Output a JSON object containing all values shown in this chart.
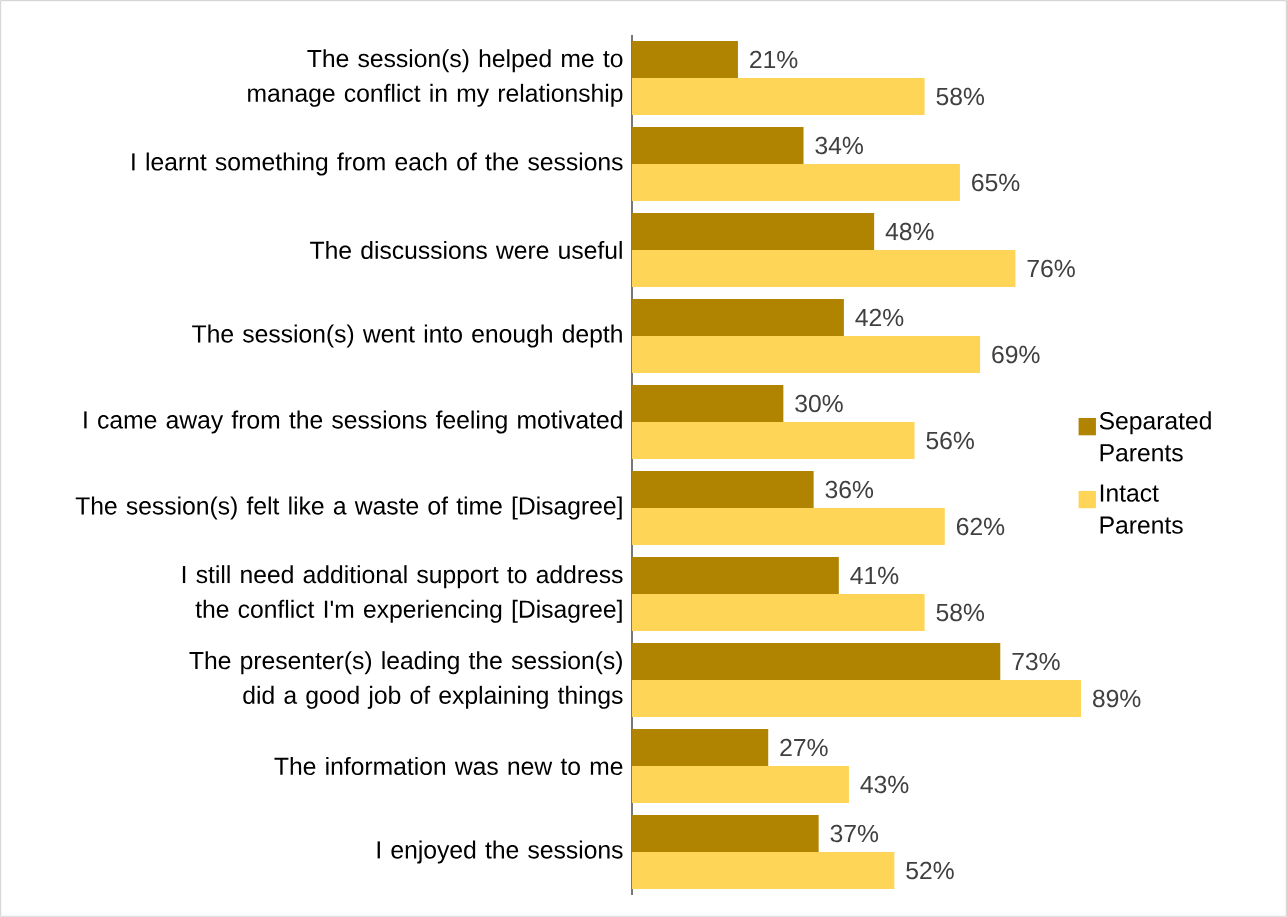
{
  "chart_data": {
    "type": "bar",
    "orientation": "horizontal",
    "legend": "right",
    "categories": [
      "The session(s) helped me to manage conflict in my relationship",
      "I learnt something from each of the sessions",
      "The discussions were useful",
      "The session(s) went into enough depth",
      "I came away from the sessions feeling motivated",
      "The session(s) felt like a waste of time [Disagree]",
      "I still need additional support to address the conflict I'm experiencing [Disagree]",
      "The presenter(s) leading the session(s) did a good job of explaining things",
      "The information was new to me",
      "I enjoyed the sessions"
    ],
    "series": [
      {
        "name": "Separated Parents",
        "color": "#b08400",
        "values": [
          21,
          34,
          48,
          42,
          30,
          36,
          41,
          73,
          27,
          37
        ],
        "value_labels": [
          "21%",
          "34%",
          "48%",
          "42%",
          "30%",
          "36%",
          "41%",
          "73%",
          "27%",
          "37%"
        ]
      },
      {
        "name": "Intact Parents",
        "color": "#ffd557",
        "values": [
          58,
          65,
          76,
          69,
          56,
          62,
          58,
          89,
          43,
          52
        ],
        "value_labels": [
          "58%",
          "65%",
          "76%",
          "69%",
          "56%",
          "62%",
          "58%",
          "89%",
          "43%",
          "52%"
        ]
      }
    ]
  }
}
